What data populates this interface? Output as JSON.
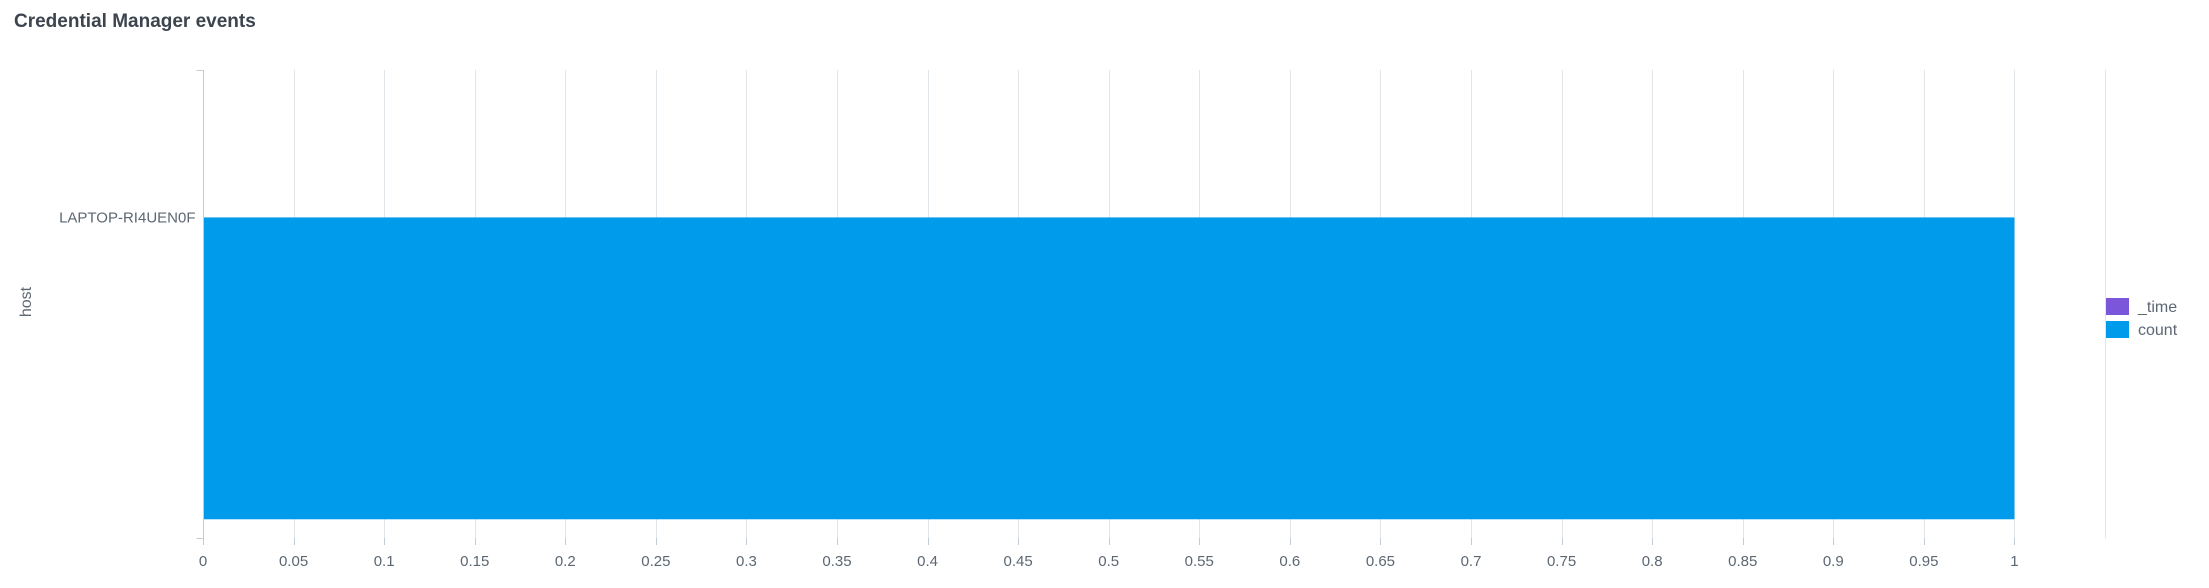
{
  "panel": {
    "title": "Credential Manager events"
  },
  "chart_data": {
    "type": "bar",
    "orientation": "horizontal",
    "title": "Credential Manager events",
    "ylabel": "host",
    "xlabel": "",
    "categories": [
      "LAPTOP-RI4UEN0F"
    ],
    "series": [
      {
        "name": "_time",
        "values": [
          0
        ],
        "color": "#7b56db"
      },
      {
        "name": "count",
        "values": [
          1
        ],
        "color": "#009ceb"
      }
    ],
    "xlim": [
      0,
      1.05
    ],
    "x_ticks": [
      0,
      0.05,
      0.1,
      0.15,
      0.2,
      0.25,
      0.3,
      0.35,
      0.4,
      0.45,
      0.5,
      0.55,
      0.6,
      0.65,
      0.7,
      0.75,
      0.8,
      0.85,
      0.9,
      0.95,
      1
    ],
    "x_tick_labels": [
      "0",
      "0.05",
      "0.1",
      "0.15",
      "0.2",
      "0.25",
      "0.3",
      "0.35",
      "0.4",
      "0.45",
      "0.5",
      "0.55",
      "0.6",
      "0.65",
      "0.7",
      "0.75",
      "0.8",
      "0.85",
      "0.9",
      "0.95",
      "1"
    ],
    "grid": true,
    "legend_position": "right"
  }
}
